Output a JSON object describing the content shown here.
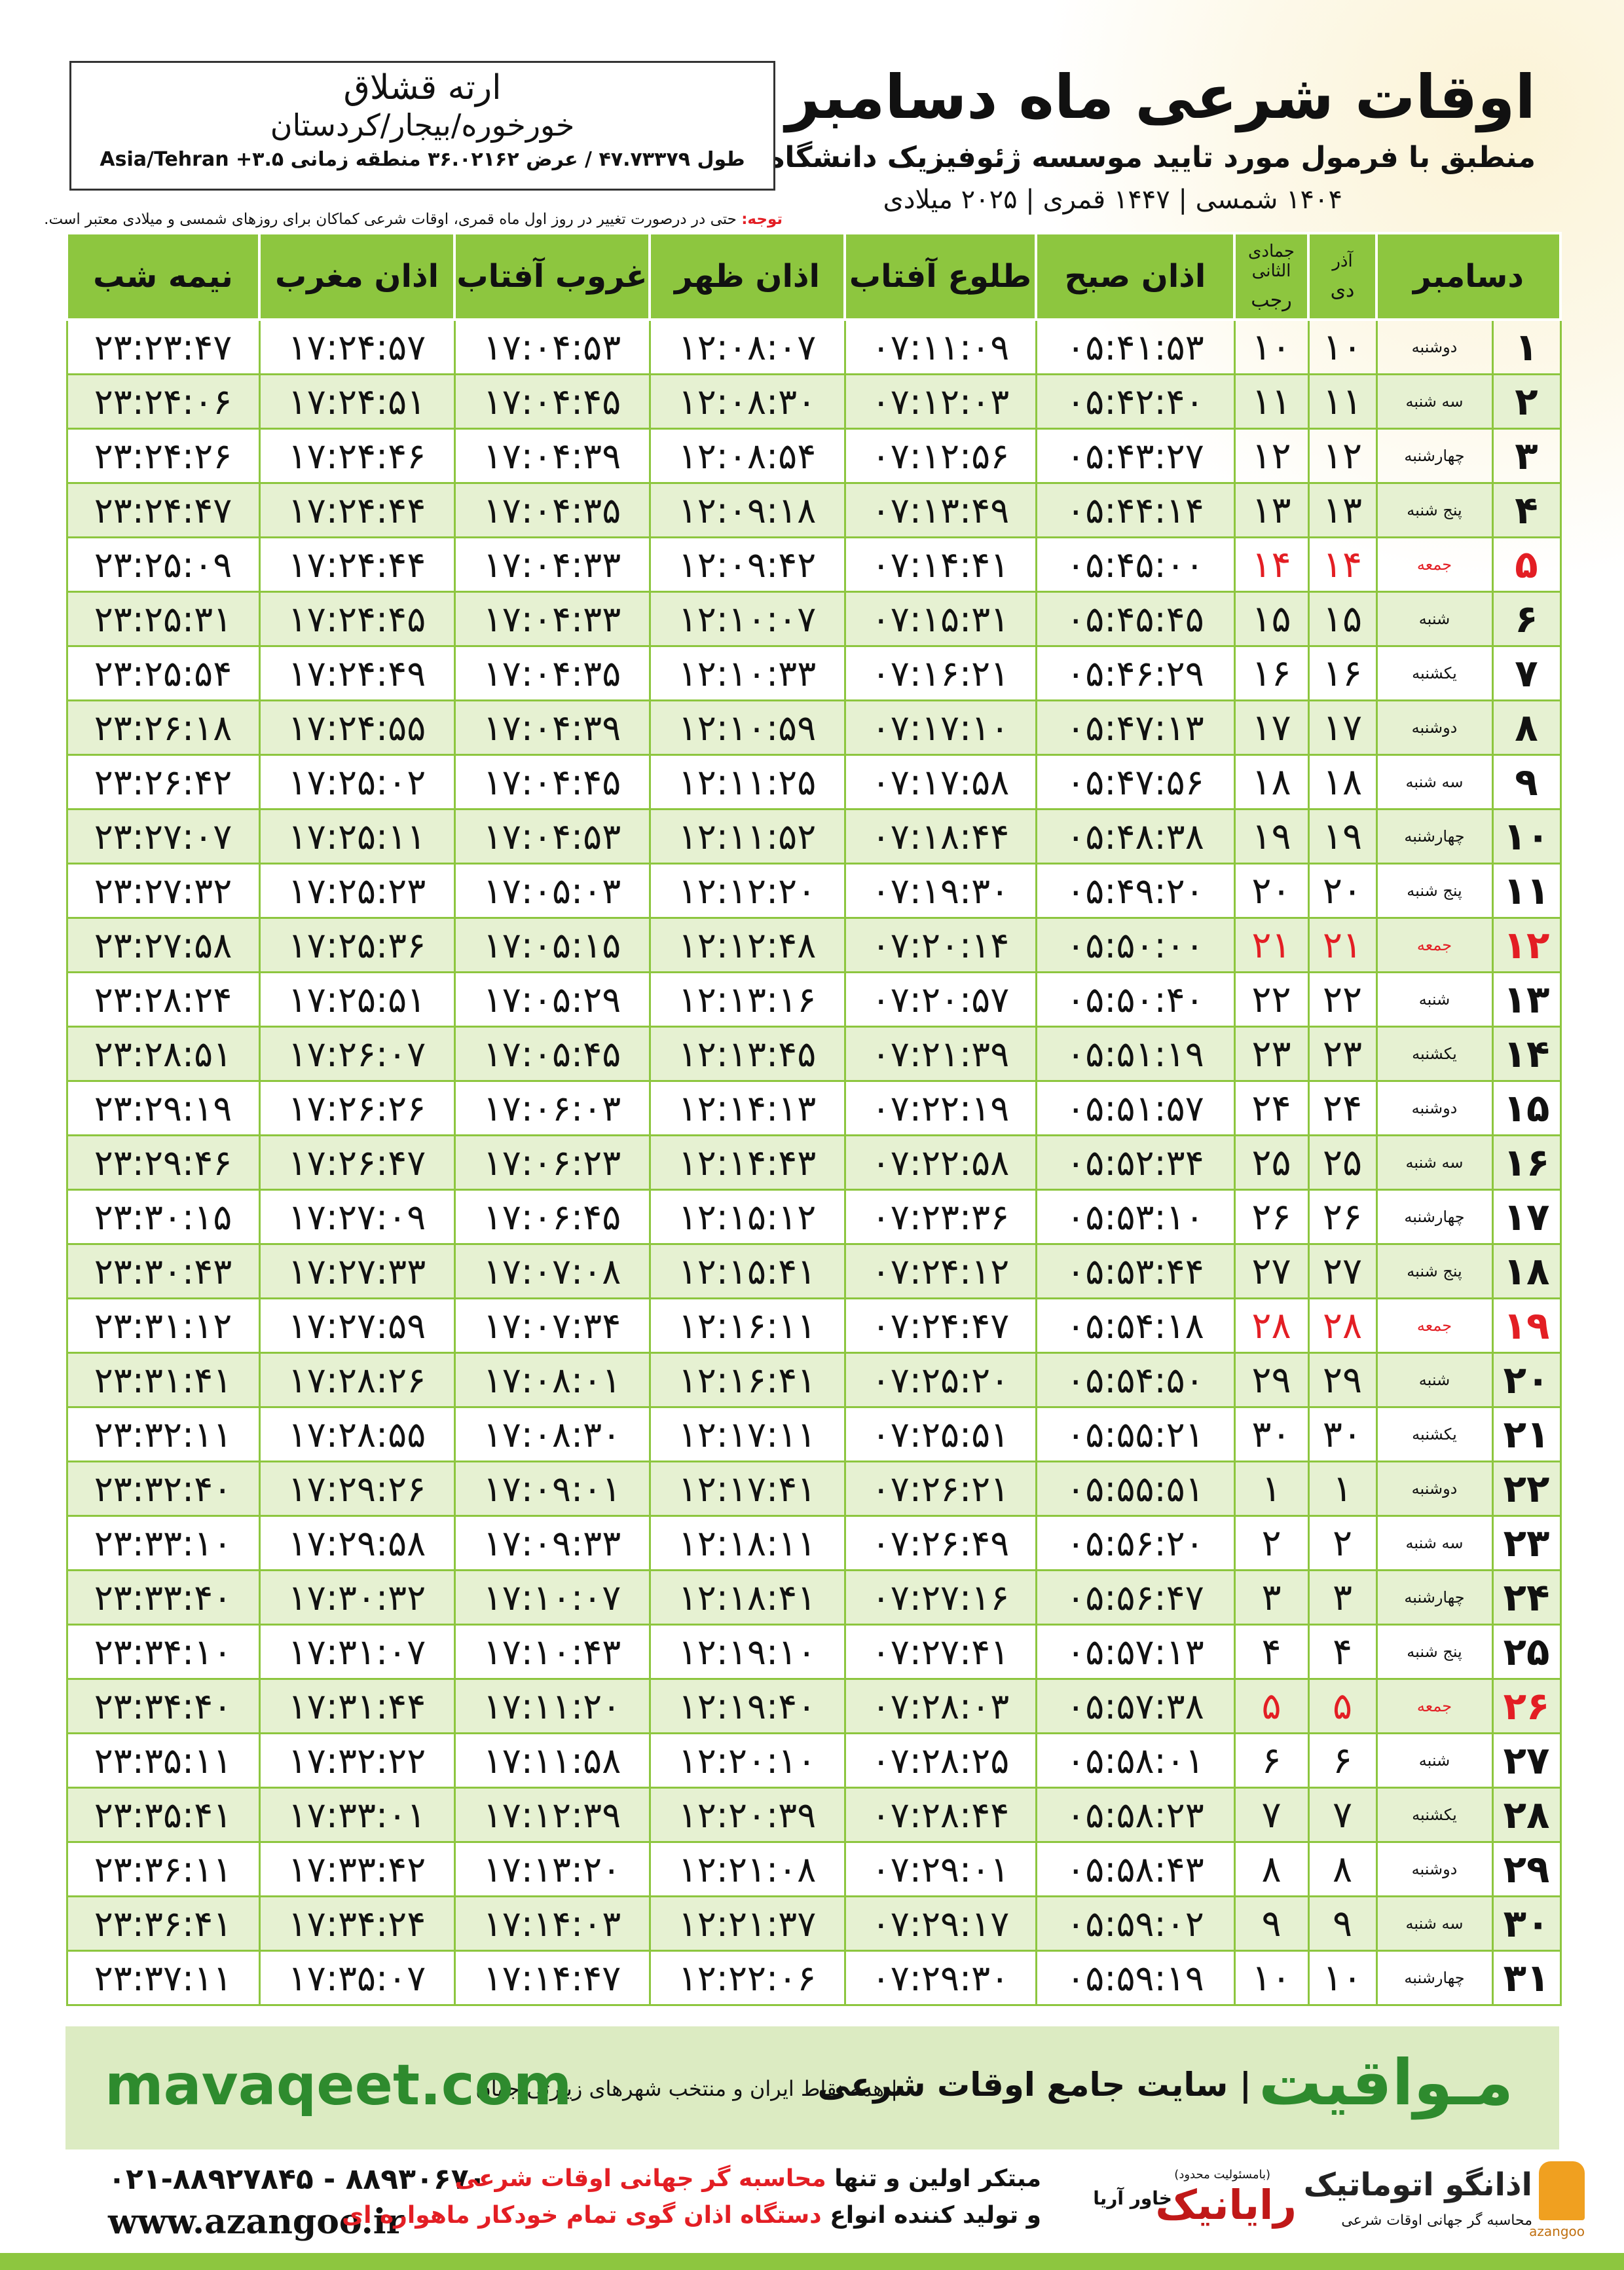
{
  "header": {
    "title": "اوقات شرعی ماه دسامبر",
    "subtitle": "منطبق با فرمول مورد تایید موسسه ژئوفیزیک دانشگاه تهران",
    "dates": "۱۴۰۴ شمسی | ۱۴۴۷ قمری | ۲۰۲۵ میلادی"
  },
  "location": {
    "name": "ارته قشلاق",
    "region": "خورخوره/بیجار/کردستان",
    "coords": "طول ۴۷.۷۳۳۷۹ / عرض ۳۶.۰۲۱۶۲ منطقه زمانی ۳.۵+ Asia/Tehran"
  },
  "note": {
    "label": "توجه:",
    "text": "حتی در درصورت تغییر در روز اول ماه قمری، اوقات شرعی کماکان برای روزهای شمسی و میلادی معتبر است."
  },
  "table": {
    "columns": [
      "دسامبر",
      [
        "آذر",
        "دی"
      ],
      [
        "جمادی الثانی",
        "رجب"
      ],
      "اذان صبح",
      "طلوع آفتاب",
      "اذان ظهر",
      "غروب آفتاب",
      "اذان مغرب",
      "نیمه شب"
    ],
    "rows": [
      {
        "cells": [
          "۱",
          "دوشنبه",
          "۱۰",
          "۱۰",
          "۰۵:۴۱:۵۳",
          "۰۷:۱۱:۰۹",
          "۱۲:۰۸:۰۷",
          "۱۷:۰۴:۵۳",
          "۱۷:۲۴:۵۷",
          "۲۳:۲۳:۴۷"
        ]
      },
      {
        "cells": [
          "۲",
          "سه شنبه",
          "۱۱",
          "۱۱",
          "۰۵:۴۲:۴۰",
          "۰۷:۱۲:۰۳",
          "۱۲:۰۸:۳۰",
          "۱۷:۰۴:۴۵",
          "۱۷:۲۴:۵۱",
          "۲۳:۲۴:۰۶"
        ]
      },
      {
        "cells": [
          "۳",
          "چهارشنبه",
          "۱۲",
          "۱۲",
          "۰۵:۴۳:۲۷",
          "۰۷:۱۲:۵۶",
          "۱۲:۰۸:۵۴",
          "۱۷:۰۴:۳۹",
          "۱۷:۲۴:۴۶",
          "۲۳:۲۴:۲۶"
        ]
      },
      {
        "cells": [
          "۴",
          "پنج شنبه",
          "۱۳",
          "۱۳",
          "۰۵:۴۴:۱۴",
          "۰۷:۱۳:۴۹",
          "۱۲:۰۹:۱۸",
          "۱۷:۰۴:۳۵",
          "۱۷:۲۴:۴۴",
          "۲۳:۲۴:۴۷"
        ]
      },
      {
        "cells": [
          "۵",
          "جمعه",
          "۱۴",
          "۱۴",
          "۰۵:۴۵:۰۰",
          "۰۷:۱۴:۴۱",
          "۱۲:۰۹:۴۲",
          "۱۷:۰۴:۳۳",
          "۱۷:۲۴:۴۴",
          "۲۳:۲۵:۰۹"
        ],
        "color": "#e31e24"
      },
      {
        "cells": [
          "۶",
          "شنبه",
          "۱۵",
          "۱۵",
          "۰۵:۴۵:۴۵",
          "۰۷:۱۵:۳۱",
          "۱۲:۱۰:۰۷",
          "۱۷:۰۴:۳۳",
          "۱۷:۲۴:۴۵",
          "۲۳:۲۵:۳۱"
        ]
      },
      {
        "cells": [
          "۷",
          "یکشنبه",
          "۱۶",
          "۱۶",
          "۰۵:۴۶:۲۹",
          "۰۷:۱۶:۲۱",
          "۱۲:۱۰:۳۳",
          "۱۷:۰۴:۳۵",
          "۱۷:۲۴:۴۹",
          "۲۳:۲۵:۵۴"
        ]
      },
      {
        "cells": [
          "۸",
          "دوشنبه",
          "۱۷",
          "۱۷",
          "۰۵:۴۷:۱۳",
          "۰۷:۱۷:۱۰",
          "۱۲:۱۰:۵۹",
          "۱۷:۰۴:۳۹",
          "۱۷:۲۴:۵۵",
          "۲۳:۲۶:۱۸"
        ]
      },
      {
        "cells": [
          "۹",
          "سه شنبه",
          "۱۸",
          "۱۸",
          "۰۵:۴۷:۵۶",
          "۰۷:۱۷:۵۸",
          "۱۲:۱۱:۲۵",
          "۱۷:۰۴:۴۵",
          "۱۷:۲۵:۰۲",
          "۲۳:۲۶:۴۲"
        ]
      },
      {
        "cells": [
          "۱۰",
          "چهارشنبه",
          "۱۹",
          "۱۹",
          "۰۵:۴۸:۳۸",
          "۰۷:۱۸:۴۴",
          "۱۲:۱۱:۵۲",
          "۱۷:۰۴:۵۳",
          "۱۷:۲۵:۱۱",
          "۲۳:۲۷:۰۷"
        ]
      },
      {
        "cells": [
          "۱۱",
          "پنج شنبه",
          "۲۰",
          "۲۰",
          "۰۵:۴۹:۲۰",
          "۰۷:۱۹:۳۰",
          "۱۲:۱۲:۲۰",
          "۱۷:۰۵:۰۳",
          "۱۷:۲۵:۲۳",
          "۲۳:۲۷:۳۲"
        ]
      },
      {
        "cells": [
          "۱۲",
          "جمعه",
          "۲۱",
          "۲۱",
          "۰۵:۵۰:۰۰",
          "۰۷:۲۰:۱۴",
          "۱۲:۱۲:۴۸",
          "۱۷:۰۵:۱۵",
          "۱۷:۲۵:۳۶",
          "۲۳:۲۷:۵۸"
        ],
        "color": "#e31e24"
      },
      {
        "cells": [
          "۱۳",
          "شنبه",
          "۲۲",
          "۲۲",
          "۰۵:۵۰:۴۰",
          "۰۷:۲۰:۵۷",
          "۱۲:۱۳:۱۶",
          "۱۷:۰۵:۲۹",
          "۱۷:۲۵:۵۱",
          "۲۳:۲۸:۲۴"
        ]
      },
      {
        "cells": [
          "۱۴",
          "یکشنبه",
          "۲۳",
          "۲۳",
          "۰۵:۵۱:۱۹",
          "۰۷:۲۱:۳۹",
          "۱۲:۱۳:۴۵",
          "۱۷:۰۵:۴۵",
          "۱۷:۲۶:۰۷",
          "۲۳:۲۸:۵۱"
        ]
      },
      {
        "cells": [
          "۱۵",
          "دوشنبه",
          "۲۴",
          "۲۴",
          "۰۵:۵۱:۵۷",
          "۰۷:۲۲:۱۹",
          "۱۲:۱۴:۱۳",
          "۱۷:۰۶:۰۳",
          "۱۷:۲۶:۲۶",
          "۲۳:۲۹:۱۹"
        ]
      },
      {
        "cells": [
          "۱۶",
          "سه شنبه",
          "۲۵",
          "۲۵",
          "۰۵:۵۲:۳۴",
          "۰۷:۲۲:۵۸",
          "۱۲:۱۴:۴۳",
          "۱۷:۰۶:۲۳",
          "۱۷:۲۶:۴۷",
          "۲۳:۲۹:۴۶"
        ]
      },
      {
        "cells": [
          "۱۷",
          "چهارشنبه",
          "۲۶",
          "۲۶",
          "۰۵:۵۳:۱۰",
          "۰۷:۲۳:۳۶",
          "۱۲:۱۵:۱۲",
          "۱۷:۰۶:۴۵",
          "۱۷:۲۷:۰۹",
          "۲۳:۳۰:۱۵"
        ]
      },
      {
        "cells": [
          "۱۸",
          "پنج شنبه",
          "۲۷",
          "۲۷",
          "۰۵:۵۳:۴۴",
          "۰۷:۲۴:۱۲",
          "۱۲:۱۵:۴۱",
          "۱۷:۰۷:۰۸",
          "۱۷:۲۷:۳۳",
          "۲۳:۳۰:۴۳"
        ]
      },
      {
        "cells": [
          "۱۹",
          "جمعه",
          "۲۸",
          "۲۸",
          "۰۵:۵۴:۱۸",
          "۰۷:۲۴:۴۷",
          "۱۲:۱۶:۱۱",
          "۱۷:۰۷:۳۴",
          "۱۷:۲۷:۵۹",
          "۲۳:۳۱:۱۲"
        ],
        "color": "#e31e24"
      },
      {
        "cells": [
          "۲۰",
          "شنبه",
          "۲۹",
          "۲۹",
          "۰۵:۵۴:۵۰",
          "۰۷:۲۵:۲۰",
          "۱۲:۱۶:۴۱",
          "۱۷:۰۸:۰۱",
          "۱۷:۲۸:۲۶",
          "۲۳:۳۱:۴۱"
        ]
      },
      {
        "cells": [
          "۲۱",
          "یکشنبه",
          "۳۰",
          "۳۰",
          "۰۵:۵۵:۲۱",
          "۰۷:۲۵:۵۱",
          "۱۲:۱۷:۱۱",
          "۱۷:۰۸:۳۰",
          "۱۷:۲۸:۵۵",
          "۲۳:۳۲:۱۱"
        ]
      },
      {
        "cells": [
          "۲۲",
          "دوشنبه",
          "۱",
          "۱",
          "۰۵:۵۵:۵۱",
          "۰۷:۲۶:۲۱",
          "۱۲:۱۷:۴۱",
          "۱۷:۰۹:۰۱",
          "۱۷:۲۹:۲۶",
          "۲۳:۳۲:۴۰"
        ]
      },
      {
        "cells": [
          "۲۳",
          "سه شنبه",
          "۲",
          "۲",
          "۰۵:۵۶:۲۰",
          "۰۷:۲۶:۴۹",
          "۱۲:۱۸:۱۱",
          "۱۷:۰۹:۳۳",
          "۱۷:۲۹:۵۸",
          "۲۳:۳۳:۱۰"
        ]
      },
      {
        "cells": [
          "۲۴",
          "چهارشنبه",
          "۳",
          "۳",
          "۰۵:۵۶:۴۷",
          "۰۷:۲۷:۱۶",
          "۱۲:۱۸:۴۱",
          "۱۷:۱۰:۰۷",
          "۱۷:۳۰:۳۲",
          "۲۳:۳۳:۴۰"
        ]
      },
      {
        "cells": [
          "۲۵",
          "پنج شنبه",
          "۴",
          "۴",
          "۰۵:۵۷:۱۳",
          "۰۷:۲۷:۴۱",
          "۱۲:۱۹:۱۰",
          "۱۷:۱۰:۴۳",
          "۱۷:۳۱:۰۷",
          "۲۳:۳۴:۱۰"
        ]
      },
      {
        "cells": [
          "۲۶",
          "جمعه",
          "۵",
          "۵",
          "۰۵:۵۷:۳۸",
          "۰۷:۲۸:۰۳",
          "۱۲:۱۹:۴۰",
          "۱۷:۱۱:۲۰",
          "۱۷:۳۱:۴۴",
          "۲۳:۳۴:۴۰"
        ],
        "color": "#e31e24"
      },
      {
        "cells": [
          "۲۷",
          "شنبه",
          "۶",
          "۶",
          "۰۵:۵۸:۰۱",
          "۰۷:۲۸:۲۵",
          "۱۲:۲۰:۱۰",
          "۱۷:۱۱:۵۸",
          "۱۷:۳۲:۲۲",
          "۲۳:۳۵:۱۱"
        ]
      },
      {
        "cells": [
          "۲۸",
          "یکشنبه",
          "۷",
          "۷",
          "۰۵:۵۸:۲۳",
          "۰۷:۲۸:۴۴",
          "۱۲:۲۰:۳۹",
          "۱۷:۱۲:۳۹",
          "۱۷:۳۳:۰۱",
          "۲۳:۳۵:۴۱"
        ]
      },
      {
        "cells": [
          "۲۹",
          "دوشنبه",
          "۸",
          "۸",
          "۰۵:۵۸:۴۳",
          "۰۷:۲۹:۰۱",
          "۱۲:۲۱:۰۸",
          "۱۷:۱۳:۲۰",
          "۱۷:۳۳:۴۲",
          "۲۳:۳۶:۱۱"
        ]
      },
      {
        "cells": [
          "۳۰",
          "سه شنبه",
          "۹",
          "۹",
          "۰۵:۵۹:۰۲",
          "۰۷:۲۹:۱۷",
          "۱۲:۲۱:۳۷",
          "۱۷:۱۴:۰۳",
          "۱۷:۳۴:۲۴",
          "۲۳:۳۶:۴۱"
        ]
      },
      {
        "cells": [
          "۳۱",
          "چهارشنبه",
          "۱۰",
          "۱۰",
          "۰۵:۵۹:۱۹",
          "۰۷:۲۹:۳۰",
          "۱۲:۲۲:۰۶",
          "۱۷:۱۴:۴۷",
          "۱۷:۳۵:۰۷",
          "۲۳:۳۷:۱۱"
        ]
      }
    ]
  },
  "footer": {
    "logo": "مـواقیت",
    "slogan": "| سایت جامع اوقات شرعی",
    "scope": "| همه نقاط ایران و منتخب شهرهای زیارتی جهان",
    "site": "mavaqeet.com"
  },
  "contact": {
    "phones": "۰۲۱-۸۸۹۲۷۸۴۵ - ۸۸۹۳۰۶۷۰",
    "web": "www.azangoo.ir",
    "line1": {
      "pre": "مبتکر اولین و تنها ",
      "highlight": "محاسبه گر جهانی اوقات شرعی"
    },
    "line2": {
      "pre": "و تولید کننده انواع ",
      "highlight": "دستگاه اذان گوی تمام خودکار ماهواره ای"
    },
    "rayanic": "رایانیک",
    "rayanic_note": "(بامسئولیت محدود)",
    "khavar": "خاور آریا",
    "azangoo": "اذانگو اتوماتیک",
    "azangoo_sub": "محاسبه گر جهانی اوقات شرعی",
    "azangoo_en": "azangoo"
  }
}
